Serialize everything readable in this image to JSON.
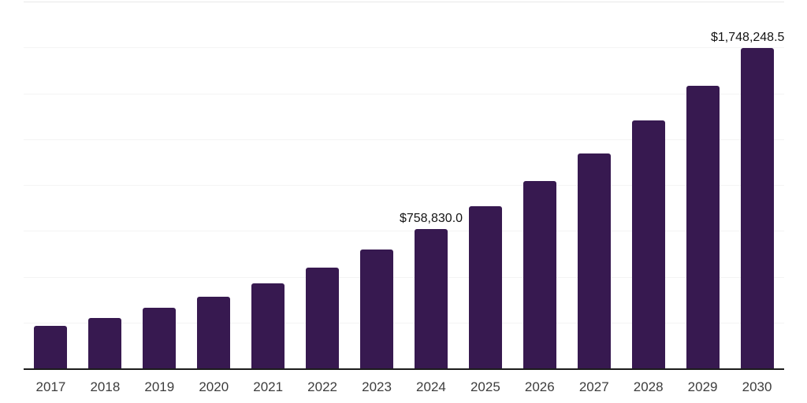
{
  "chart_data": {
    "type": "bar",
    "title": "",
    "xlabel": "",
    "ylabel": "",
    "categories": [
      "2017",
      "2018",
      "2019",
      "2020",
      "2021",
      "2022",
      "2023",
      "2024",
      "2025",
      "2026",
      "2027",
      "2028",
      "2029",
      "2030"
    ],
    "values": [
      232100,
      274900,
      331800,
      390500,
      463200,
      548900,
      649900,
      758830.0,
      882800,
      1019800,
      1172200,
      1350700,
      1542100,
      1748248.5
    ],
    "ylim": [
      0,
      2000000
    ],
    "grid_interval": 250000,
    "grid": "horizontal",
    "legend": "none",
    "y_axis_tick_labels": "hidden",
    "data_labels": [
      {
        "category": "2024",
        "text": "$758,830.0"
      },
      {
        "category": "2030",
        "text": "$1,748,248.5"
      }
    ]
  },
  "style": {
    "bar_color": "#371950",
    "gridline_color": "#f4f4f4",
    "plot_top_border_color": "#e8e8e8",
    "axis_line_color": "#1c1c1c",
    "tick_label_color": "#3d3d3d",
    "value_label_color": "#141414",
    "background_color": "#ffffff"
  }
}
